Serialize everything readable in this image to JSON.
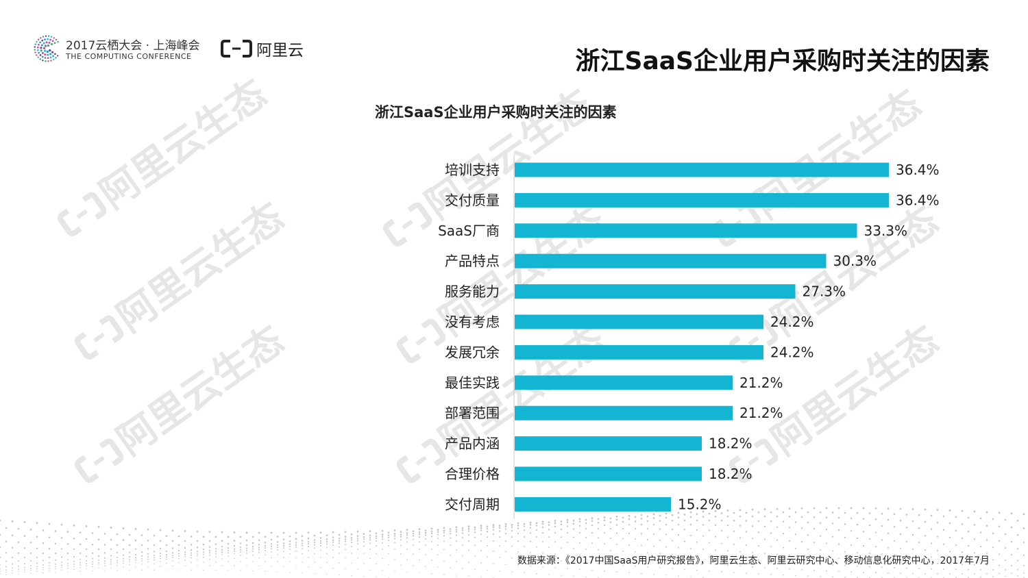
{
  "header": {
    "conference_title": "2017云栖大会 · 上海峰会",
    "conference_subtitle": "THE COMPUTING CONFERENCE",
    "brand_name": "阿里云"
  },
  "page_title": "浙江SaaS企业用户采购时关注的因素",
  "watermark_text": "阿里云生态",
  "footer": {
    "source": "数据来源：《2017中国SaaS用户研究报告》，阿里云生态、阿里云研究中心、移动信息化研究中心，2017年7月"
  },
  "colors": {
    "bar": "#13B5D2",
    "watermark": "#e6e6e6",
    "dots": "#c4c4c4"
  },
  "chart_data": {
    "type": "bar",
    "orientation": "horizontal",
    "title": "浙江SaaS企业用户采购时关注的因素",
    "categories": [
      "培训支持",
      "交付质量",
      "SaaS厂商",
      "产品特点",
      "服务能力",
      "没有考虑",
      "发展冗余",
      "最佳实践",
      "部署范围",
      "产品内涵",
      "合理价格",
      "交付周期"
    ],
    "values": [
      36.4,
      36.4,
      33.3,
      30.3,
      27.3,
      24.2,
      24.2,
      21.2,
      21.2,
      18.2,
      18.2,
      15.2
    ],
    "value_labels": [
      "36.4%",
      "36.4%",
      "33.3%",
      "30.3%",
      "27.3%",
      "24.2%",
      "24.2%",
      "21.2%",
      "21.2%",
      "18.2%",
      "18.2%",
      "15.2%"
    ],
    "unit": "%",
    "xlim": [
      0,
      36.4
    ],
    "grid": false,
    "legend": "none"
  }
}
